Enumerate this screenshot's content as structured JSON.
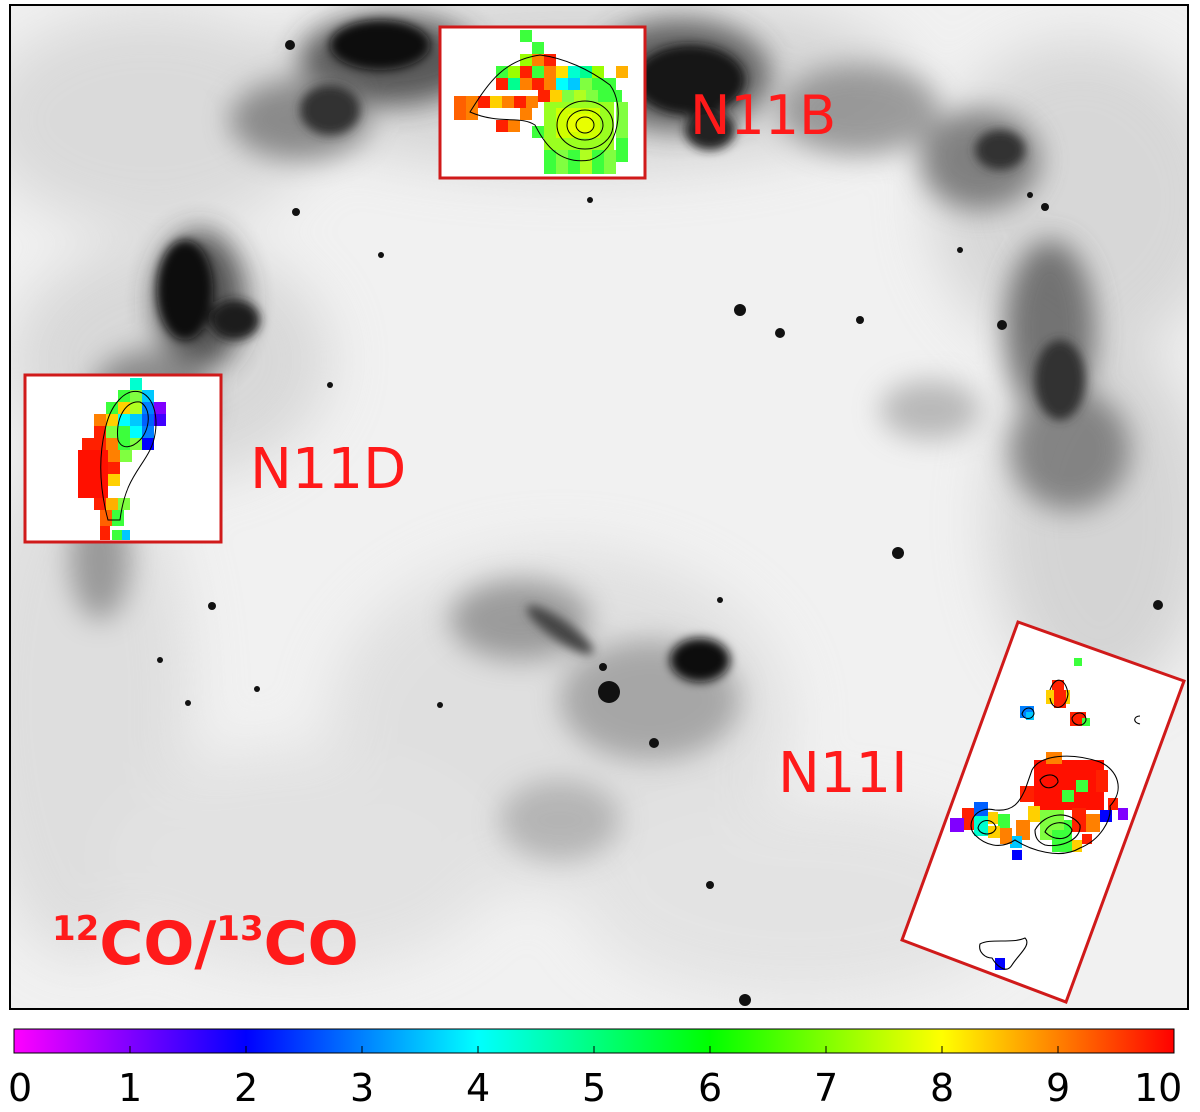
{
  "regions": [
    {
      "name": "N11B"
    },
    {
      "name": "N11D"
    },
    {
      "name": "N11I"
    }
  ],
  "ratio_label": {
    "iso_a": "12",
    "species_a": "CO/",
    "iso_b": "13",
    "species_b": "CO"
  },
  "colorbar": {
    "ticks": [
      "0",
      "1",
      "2",
      "3",
      "4",
      "5",
      "6",
      "7",
      "8",
      "9",
      "10"
    ],
    "range": [
      0,
      10
    ],
    "stops": [
      "#ff00ff",
      "#8000ff",
      "#0000ff",
      "#0080ff",
      "#00ffff",
      "#00ff80",
      "#00ff00",
      "#80ff00",
      "#ffff00",
      "#ff8000",
      "#ff0000"
    ]
  },
  "colors": {
    "label": "#ff1a1a",
    "inset_border": "#d01a1a",
    "frame": "#000000"
  }
}
